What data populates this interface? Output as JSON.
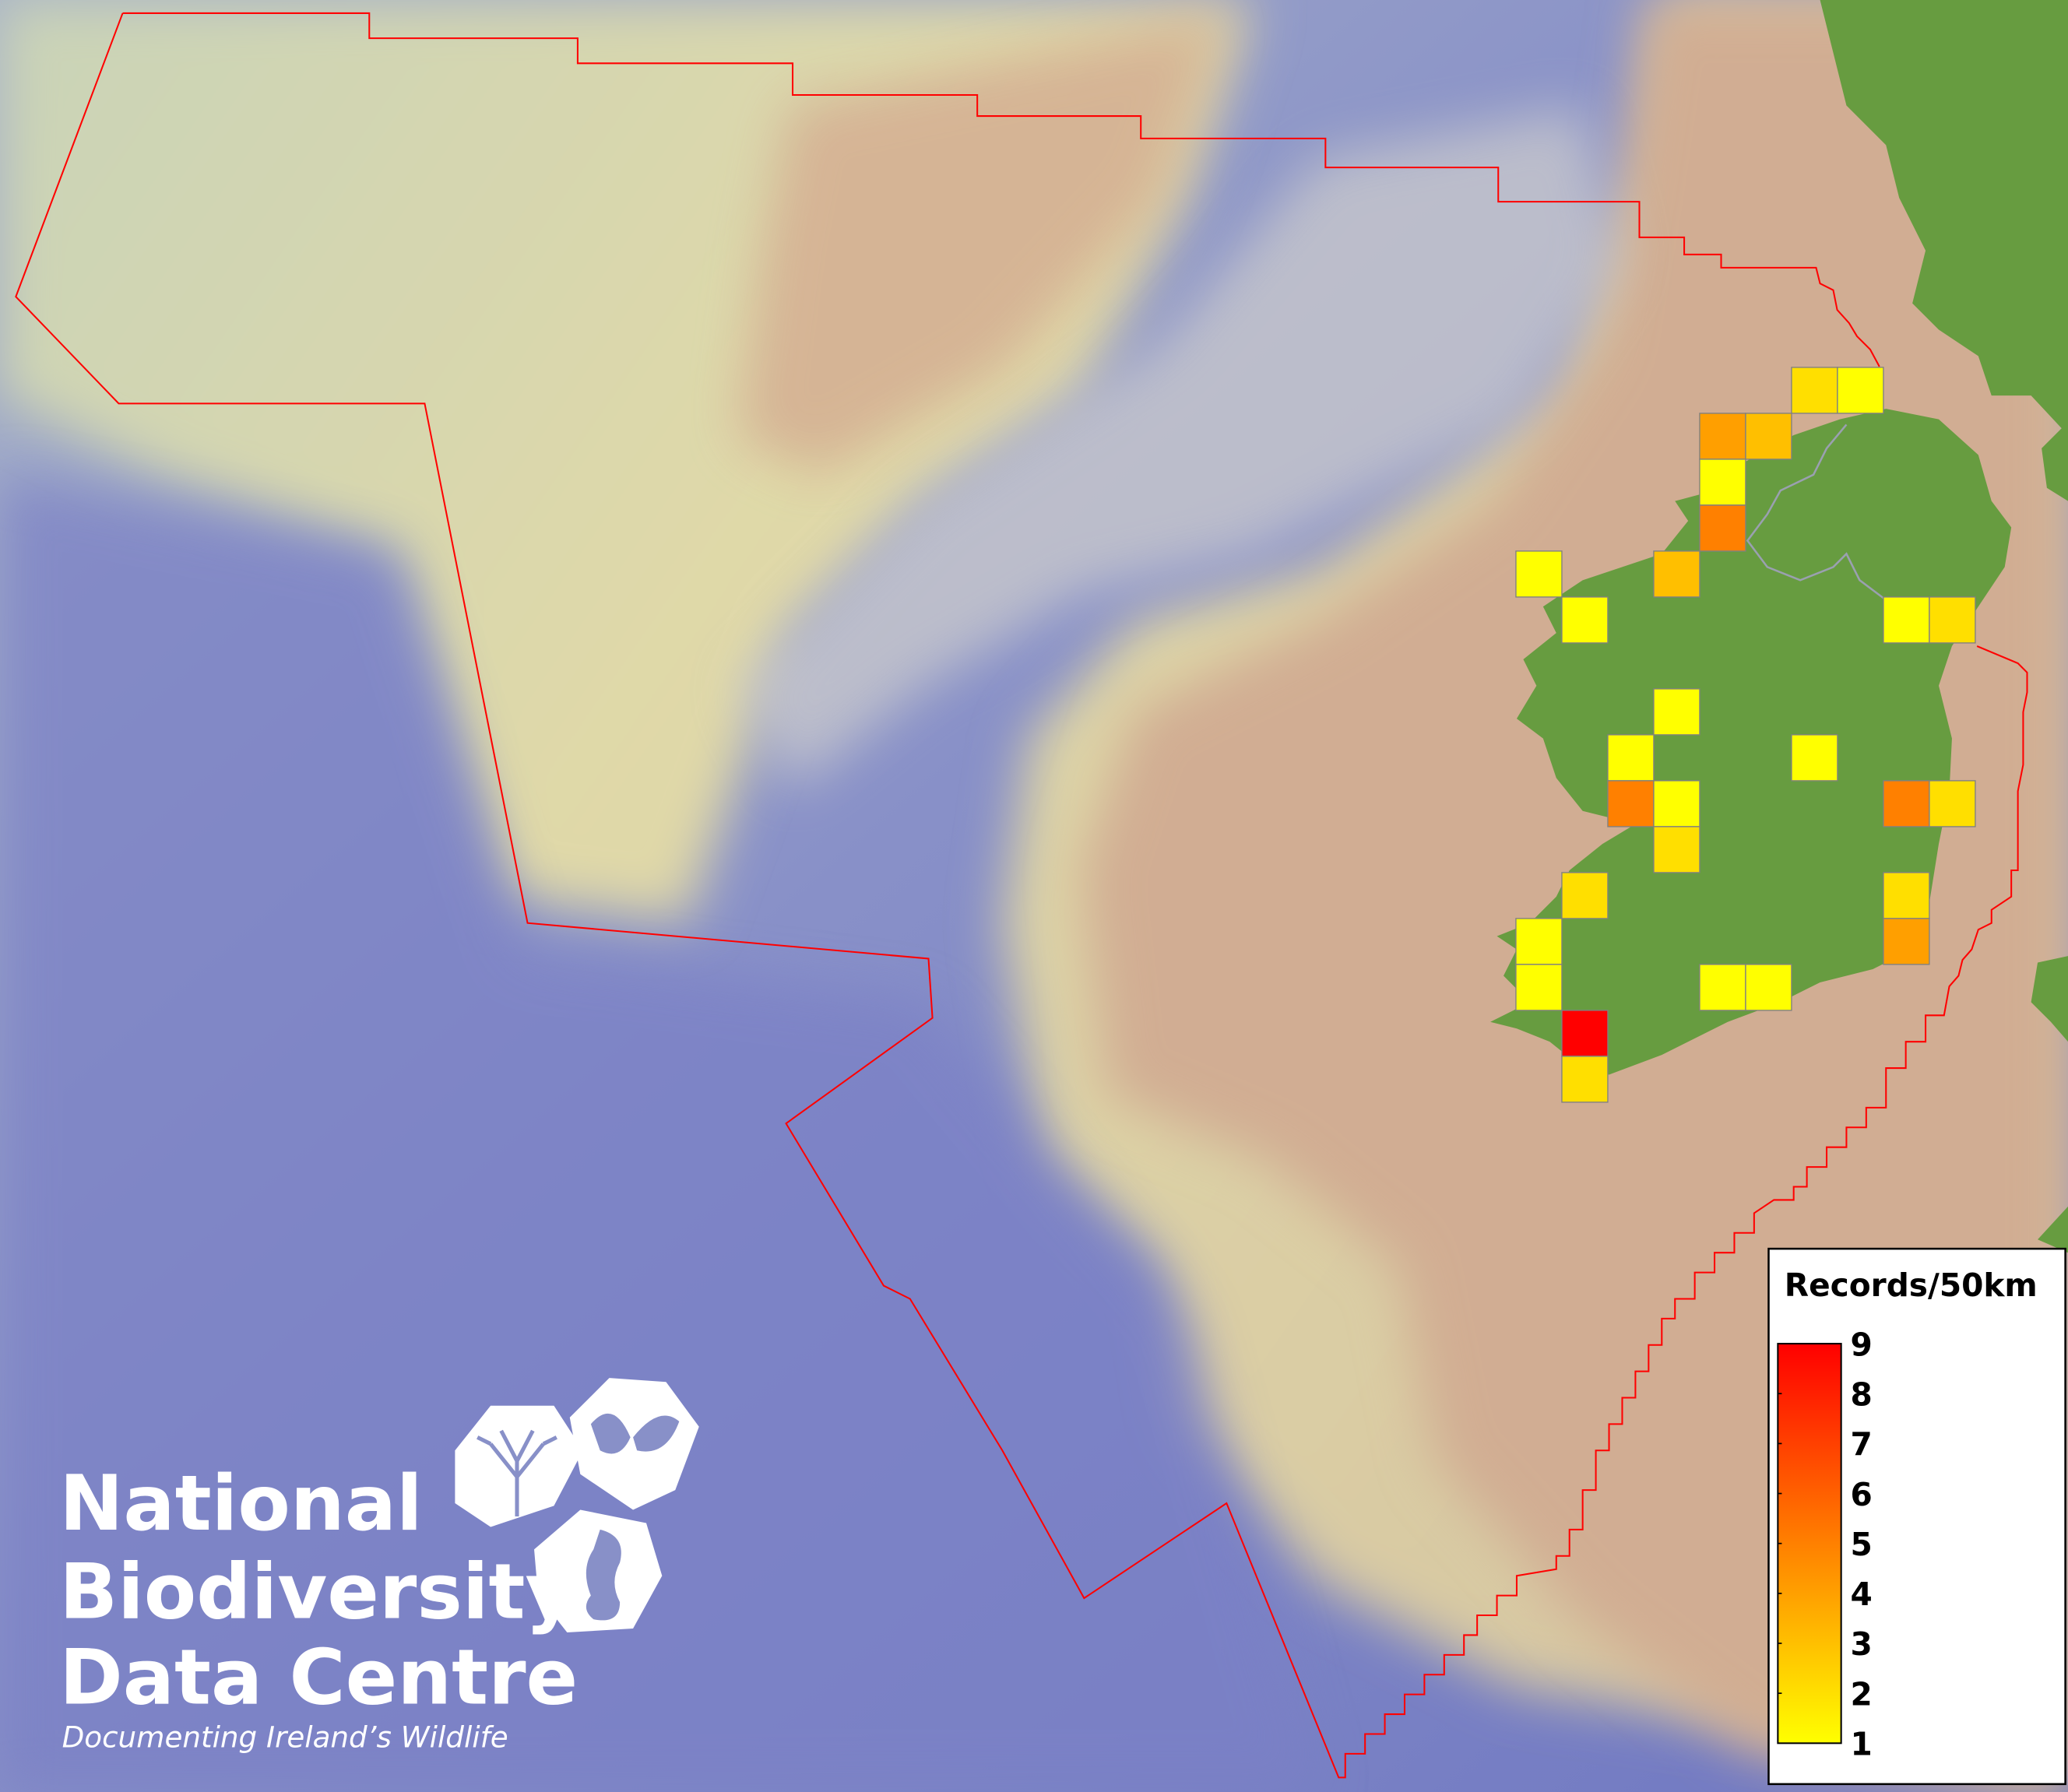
{
  "map": {
    "colors": {
      "ocean_deep": "#7a82c8",
      "shelf": "#d9d7a8",
      "land_plain": "#cfac8f",
      "land_green": "#679c40",
      "boundary": "#ff0000",
      "cell_border": "#808080"
    },
    "grid_cells": [
      {
        "col": 6,
        "row": 0,
        "value": 2
      },
      {
        "col": 7,
        "row": 0,
        "value": 1
      },
      {
        "col": 4,
        "row": 1,
        "value": 4
      },
      {
        "col": 5,
        "row": 1,
        "value": 3
      },
      {
        "col": 4,
        "row": 2,
        "value": 1
      },
      {
        "col": 4,
        "row": 3,
        "value": 5
      },
      {
        "col": 0,
        "row": 4,
        "value": 1
      },
      {
        "col": 3,
        "row": 4,
        "value": 3
      },
      {
        "col": 1,
        "row": 5,
        "value": 1
      },
      {
        "col": 8,
        "row": 5,
        "value": 1
      },
      {
        "col": 9,
        "row": 5,
        "value": 2
      },
      {
        "col": 3,
        "row": 7,
        "value": 1
      },
      {
        "col": 2,
        "row": 8,
        "value": 1
      },
      {
        "col": 6,
        "row": 8,
        "value": 1
      },
      {
        "col": 2,
        "row": 9,
        "value": 5
      },
      {
        "col": 3,
        "row": 9,
        "value": 1
      },
      {
        "col": 8,
        "row": 9,
        "value": 5
      },
      {
        "col": 9,
        "row": 9,
        "value": 2
      },
      {
        "col": 3,
        "row": 10,
        "value": 2
      },
      {
        "col": 1,
        "row": 11,
        "value": 2
      },
      {
        "col": 8,
        "row": 11,
        "value": 2
      },
      {
        "col": 0,
        "row": 12,
        "value": 1
      },
      {
        "col": 8,
        "row": 12,
        "value": 4
      },
      {
        "col": 0,
        "row": 13,
        "value": 1
      },
      {
        "col": 4,
        "row": 13,
        "value": 1
      },
      {
        "col": 5,
        "row": 13,
        "value": 1
      },
      {
        "col": 1,
        "row": 14,
        "value": 9
      },
      {
        "col": 1,
        "row": 15,
        "value": 2
      }
    ]
  },
  "legend": {
    "title": "Records/50km",
    "min": 1,
    "max": 9,
    "ticks": [
      "9",
      "8",
      "7",
      "6",
      "5",
      "4",
      "3",
      "2",
      "1"
    ],
    "color_low": "#ffff00",
    "color_high": "#ff0000"
  },
  "logo": {
    "line1": "National",
    "line2": "Biodiversity",
    "line3": "Data Centre",
    "tagline": "Documenting Ireland’s Wildlife",
    "icons": [
      "tree-icon",
      "butterfly-icon",
      "seahorse-icon"
    ]
  }
}
